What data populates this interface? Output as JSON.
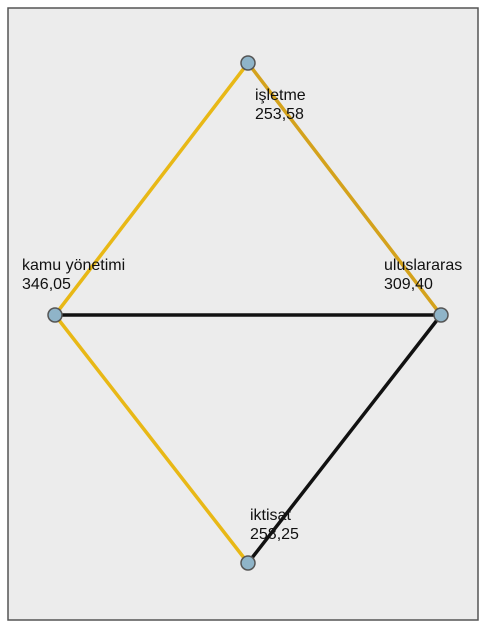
{
  "nodes": [
    {
      "label": "işletme",
      "value": "253,58"
    },
    {
      "label": "kamu yönetimi",
      "value": "346,05"
    },
    {
      "label": "uluslararas",
      "value": "309,40"
    },
    {
      "label": "iktisat",
      "value": "258,25"
    }
  ],
  "edges": [
    {
      "from": 0,
      "to": 1,
      "color": "#e8b816"
    },
    {
      "from": 0,
      "to": 2,
      "color": "#d4a21c"
    },
    {
      "from": 1,
      "to": 2,
      "color": "#111111"
    },
    {
      "from": 1,
      "to": 3,
      "color": "#e8b816"
    },
    {
      "from": 2,
      "to": 3,
      "color": "#111111"
    }
  ]
}
